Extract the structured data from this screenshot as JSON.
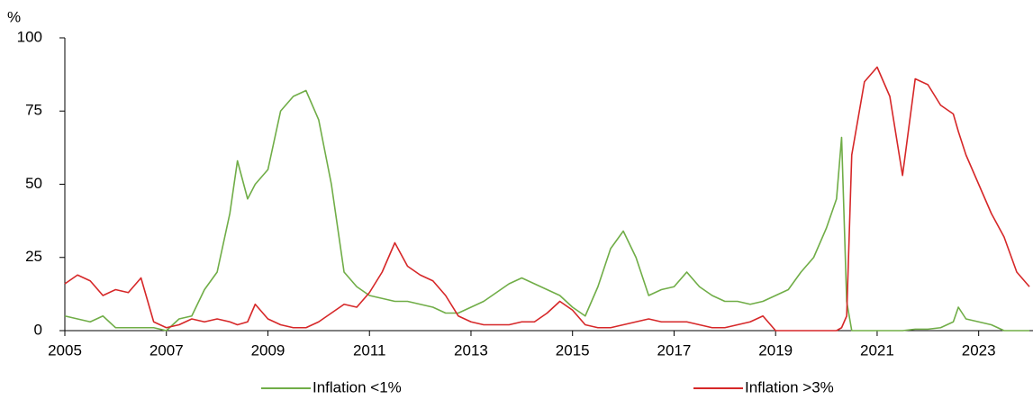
{
  "chart_data": {
    "type": "line",
    "y_unit": "%",
    "x": [
      2005,
      2005.25,
      2005.5,
      2005.75,
      2006,
      2006.25,
      2006.5,
      2006.75,
      2007,
      2007.25,
      2007.5,
      2007.75,
      2008,
      2008.25,
      2008.4,
      2008.6,
      2008.75,
      2009,
      2009.25,
      2009.5,
      2009.75,
      2010,
      2010.25,
      2010.5,
      2010.75,
      2011,
      2011.25,
      2011.5,
      2011.75,
      2012,
      2012.25,
      2012.5,
      2012.75,
      2013,
      2013.25,
      2013.5,
      2013.75,
      2014,
      2014.25,
      2014.5,
      2014.75,
      2015,
      2015.25,
      2015.5,
      2015.75,
      2016,
      2016.25,
      2016.5,
      2016.75,
      2017,
      2017.25,
      2017.5,
      2017.75,
      2018,
      2018.25,
      2018.5,
      2018.75,
      2019,
      2019.25,
      2019.5,
      2019.75,
      2020,
      2020.2,
      2020.3,
      2020.4,
      2020.5,
      2020.75,
      2021,
      2021.25,
      2021.5,
      2021.75,
      2022,
      2022.25,
      2022.5,
      2022.6,
      2022.75,
      2023,
      2023.25,
      2023.5,
      2023.75,
      2024
    ],
    "series": [
      {
        "name": "Inflation <1%",
        "color": "#70ad47",
        "values": [
          5,
          4,
          3,
          5,
          1,
          1,
          1,
          1,
          0,
          4,
          5,
          14,
          20,
          40,
          58,
          45,
          50,
          55,
          75,
          80,
          82,
          72,
          50,
          20,
          15,
          12,
          11,
          10,
          10,
          9,
          8,
          6,
          6,
          8,
          10,
          13,
          16,
          18,
          16,
          14,
          12,
          8,
          5,
          15,
          28,
          34,
          25,
          12,
          14,
          15,
          20,
          15,
          12,
          10,
          10,
          9,
          10,
          12,
          14,
          20,
          25,
          35,
          45,
          66,
          10,
          0,
          0,
          0,
          0,
          0,
          0.5,
          0.5,
          1,
          3,
          8,
          4,
          3,
          2,
          0,
          0,
          0
        ]
      },
      {
        "name": "Inflation >3%",
        "color": "#d62728",
        "values": [
          16,
          19,
          17,
          12,
          14,
          13,
          18,
          3,
          1,
          2,
          4,
          3,
          4,
          3,
          2,
          3,
          9,
          4,
          2,
          1,
          1,
          3,
          6,
          9,
          8,
          13,
          20,
          30,
          22,
          19,
          17,
          12,
          5,
          3,
          2,
          2,
          2,
          3,
          3,
          6,
          10,
          7,
          2,
          1,
          1,
          2,
          3,
          4,
          3,
          3,
          3,
          2,
          1,
          1,
          2,
          3,
          5,
          0,
          0,
          0,
          0,
          0,
          0,
          1,
          5,
          60,
          85,
          90,
          80,
          53,
          86,
          84,
          77,
          74,
          68,
          60,
          50,
          40,
          32,
          20,
          15
        ]
      }
    ],
    "xlim": [
      2005,
      2024.07
    ],
    "xticks": [
      2005,
      2007,
      2009,
      2011,
      2013,
      2015,
      2017,
      2019,
      2021,
      2023
    ],
    "ylim": [
      0,
      100
    ],
    "yticks": [
      0,
      25,
      50,
      75,
      100
    ],
    "grid": false,
    "legend": "bottom"
  }
}
